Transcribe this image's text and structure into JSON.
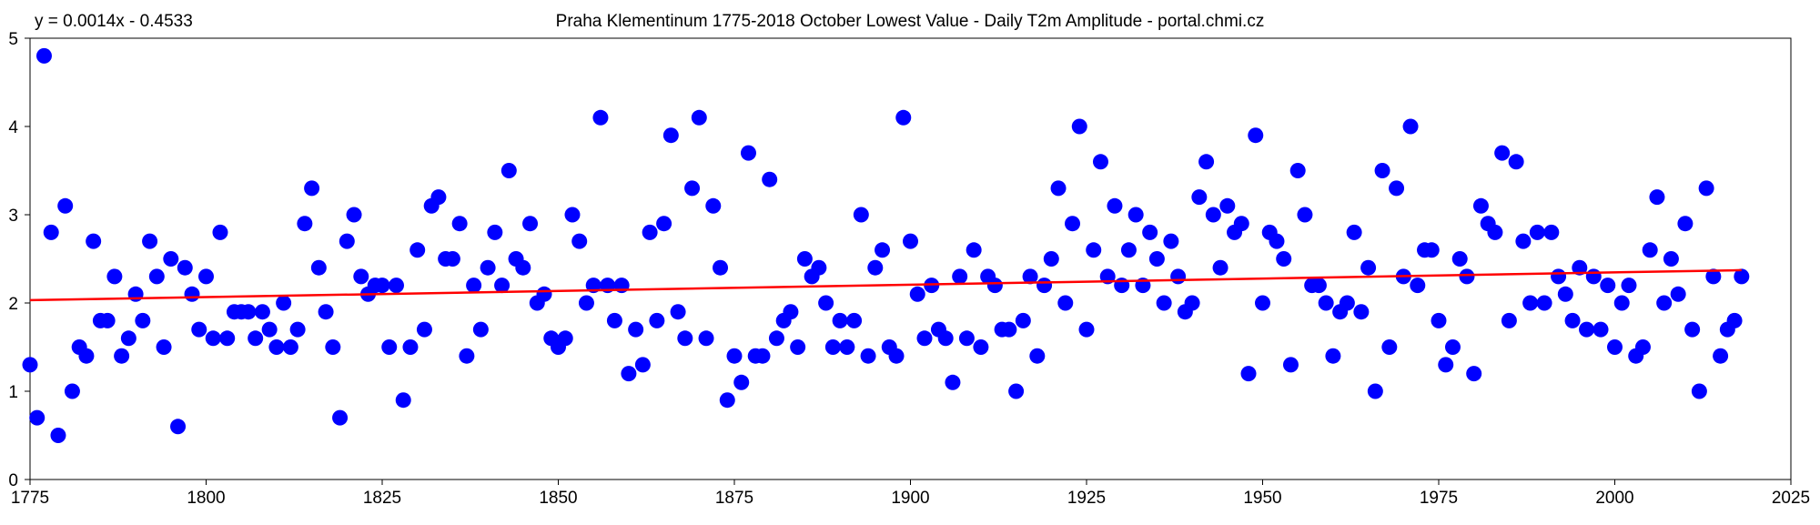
{
  "chart_data": {
    "type": "scatter",
    "title": "Praha Klementinum 1775-2018 October Lowest Value - Daily T2m Amplitude - portal.chmi.cz",
    "trendline_label": "y = 0.0014x - 0.4533",
    "trendline": {
      "slope": 0.0014,
      "intercept": -0.4533,
      "x_start": 1775,
      "x_end": 2018
    },
    "xlabel": "",
    "ylabel": "",
    "xlim": [
      1775,
      2025
    ],
    "ylim": [
      0,
      5
    ],
    "x_ticks": [
      1775,
      1800,
      1825,
      1850,
      1875,
      1900,
      1925,
      1950,
      1975,
      2000,
      2025
    ],
    "y_ticks": [
      0,
      1,
      2,
      3,
      4,
      5
    ],
    "grid": false,
    "legend": "none",
    "colors": {
      "points": "#0000ff",
      "trendline": "#ff0000",
      "axis": "#000000",
      "background": "#ffffff"
    },
    "series": [
      {
        "name": "October Lowest Daily T2m Amplitude",
        "x": [
          1775,
          1776,
          1777,
          1778,
          1779,
          1780,
          1781,
          1782,
          1783,
          1784,
          1785,
          1786,
          1787,
          1788,
          1789,
          1790,
          1791,
          1792,
          1793,
          1794,
          1795,
          1796,
          1797,
          1798,
          1799,
          1800,
          1801,
          1802,
          1803,
          1804,
          1805,
          1806,
          1807,
          1808,
          1809,
          1810,
          1811,
          1812,
          1813,
          1814,
          1815,
          1816,
          1817,
          1818,
          1819,
          1820,
          1821,
          1822,
          1823,
          1824,
          1825,
          1826,
          1827,
          1828,
          1829,
          1830,
          1831,
          1832,
          1833,
          1834,
          1835,
          1836,
          1837,
          1838,
          1839,
          1840,
          1841,
          1842,
          1843,
          1844,
          1845,
          1846,
          1847,
          1848,
          1849,
          1850,
          1851,
          1852,
          1853,
          1854,
          1855,
          1856,
          1857,
          1858,
          1859,
          1860,
          1861,
          1862,
          1863,
          1864,
          1865,
          1866,
          1867,
          1868,
          1869,
          1870,
          1871,
          1872,
          1873,
          1874,
          1875,
          1876,
          1877,
          1878,
          1879,
          1880,
          1881,
          1882,
          1883,
          1884,
          1885,
          1886,
          1887,
          1888,
          1889,
          1890,
          1891,
          1892,
          1893,
          1894,
          1895,
          1896,
          1897,
          1898,
          1899,
          1900,
          1901,
          1902,
          1903,
          1904,
          1905,
          1906,
          1907,
          1908,
          1909,
          1910,
          1911,
          1912,
          1913,
          1914,
          1915,
          1916,
          1917,
          1918,
          1919,
          1920,
          1921,
          1922,
          1923,
          1924,
          1925,
          1926,
          1927,
          1928,
          1929,
          1930,
          1931,
          1932,
          1933,
          1934,
          1935,
          1936,
          1937,
          1938,
          1939,
          1940,
          1941,
          1942,
          1943,
          1944,
          1945,
          1946,
          1947,
          1948,
          1949,
          1950,
          1951,
          1952,
          1953,
          1954,
          1955,
          1956,
          1957,
          1958,
          1959,
          1960,
          1961,
          1962,
          1963,
          1964,
          1965,
          1966,
          1967,
          1968,
          1969,
          1970,
          1971,
          1972,
          1973,
          1974,
          1975,
          1976,
          1977,
          1978,
          1979,
          1980,
          1981,
          1982,
          1983,
          1984,
          1985,
          1986,
          1987,
          1988,
          1989,
          1990,
          1991,
          1992,
          1993,
          1994,
          1995,
          1996,
          1997,
          1998,
          1999,
          2000,
          2001,
          2002,
          2003,
          2004,
          2005,
          2006,
          2007,
          2008,
          2009,
          2010,
          2011,
          2012,
          2013,
          2014,
          2015,
          2016,
          2017,
          2018
        ],
        "y": [
          1.3,
          0.7,
          4.8,
          2.8,
          0.5,
          3.1,
          1.0,
          1.5,
          1.4,
          2.7,
          1.8,
          1.8,
          2.3,
          1.4,
          1.6,
          2.1,
          1.8,
          2.7,
          2.3,
          1.5,
          2.5,
          0.6,
          2.4,
          2.1,
          1.7,
          2.3,
          1.6,
          2.8,
          1.6,
          1.9,
          1.9,
          1.9,
          1.6,
          1.9,
          1.7,
          1.5,
          2.0,
          1.5,
          1.7,
          2.9,
          3.3,
          2.4,
          1.9,
          1.5,
          0.7,
          2.7,
          3.0,
          2.3,
          2.1,
          2.2,
          2.2,
          1.5,
          2.2,
          0.9,
          1.5,
          2.6,
          1.7,
          3.1,
          3.2,
          2.5,
          2.5,
          2.9,
          1.4,
          2.2,
          1.7,
          2.4,
          2.8,
          2.2,
          3.5,
          2.5,
          2.4,
          2.9,
          2.0,
          2.1,
          1.6,
          1.5,
          1.6,
          3.0,
          2.7,
          2.0,
          2.2,
          4.1,
          2.2,
          1.8,
          2.2,
          1.2,
          1.7,
          1.3,
          2.8,
          1.8,
          2.9,
          3.9,
          1.9,
          1.6,
          3.3,
          4.1,
          1.6,
          3.1,
          2.4,
          0.9,
          1.4,
          1.1,
          3.7,
          1.4,
          1.4,
          3.4,
          1.6,
          1.8,
          1.9,
          1.5,
          2.5,
          2.3,
          2.4,
          2.0,
          1.5,
          1.8,
          1.5,
          1.8,
          3.0,
          1.4,
          2.4,
          2.6,
          1.5,
          1.4,
          4.1,
          2.7,
          2.1,
          1.6,
          2.2,
          1.7,
          1.6,
          1.1,
          2.3,
          1.6,
          2.6,
          1.5,
          2.3,
          2.2,
          1.7,
          1.7,
          1.0,
          1.8,
          2.3,
          1.4,
          2.2,
          2.5,
          3.3,
          2.0,
          2.9,
          4.0,
          1.7,
          2.6,
          3.6,
          2.3,
          3.1,
          2.2,
          2.6,
          3.0,
          2.2,
          2.8,
          2.5,
          2.0,
          2.7,
          2.3,
          1.9,
          2.0,
          3.2,
          3.6,
          3.0,
          2.4,
          3.1,
          2.8,
          2.9,
          1.2,
          3.9,
          2.0,
          2.8,
          2.7,
          2.5,
          1.3,
          3.5,
          3.0,
          2.2,
          2.2,
          2.0,
          1.4,
          1.9,
          2.0,
          2.8,
          1.9,
          2.4,
          1.0,
          3.5,
          1.5,
          3.3,
          2.3,
          4.0,
          2.2,
          2.6,
          2.6,
          1.8,
          1.3,
          1.5,
          2.5,
          2.3,
          1.2,
          3.1,
          2.9,
          2.8,
          3.7,
          1.8,
          3.6,
          2.7,
          2.0,
          2.8,
          2.0,
          2.8,
          2.3,
          2.1,
          1.8,
          2.4,
          1.7,
          2.3,
          1.7,
          2.2,
          1.5,
          2.0,
          2.2,
          1.4,
          1.5,
          2.6,
          3.2,
          2.0,
          2.5,
          2.1,
          2.9,
          1.7,
          1.0,
          3.3,
          2.3,
          1.4,
          1.7,
          1.8,
          2.3
        ]
      }
    ]
  }
}
